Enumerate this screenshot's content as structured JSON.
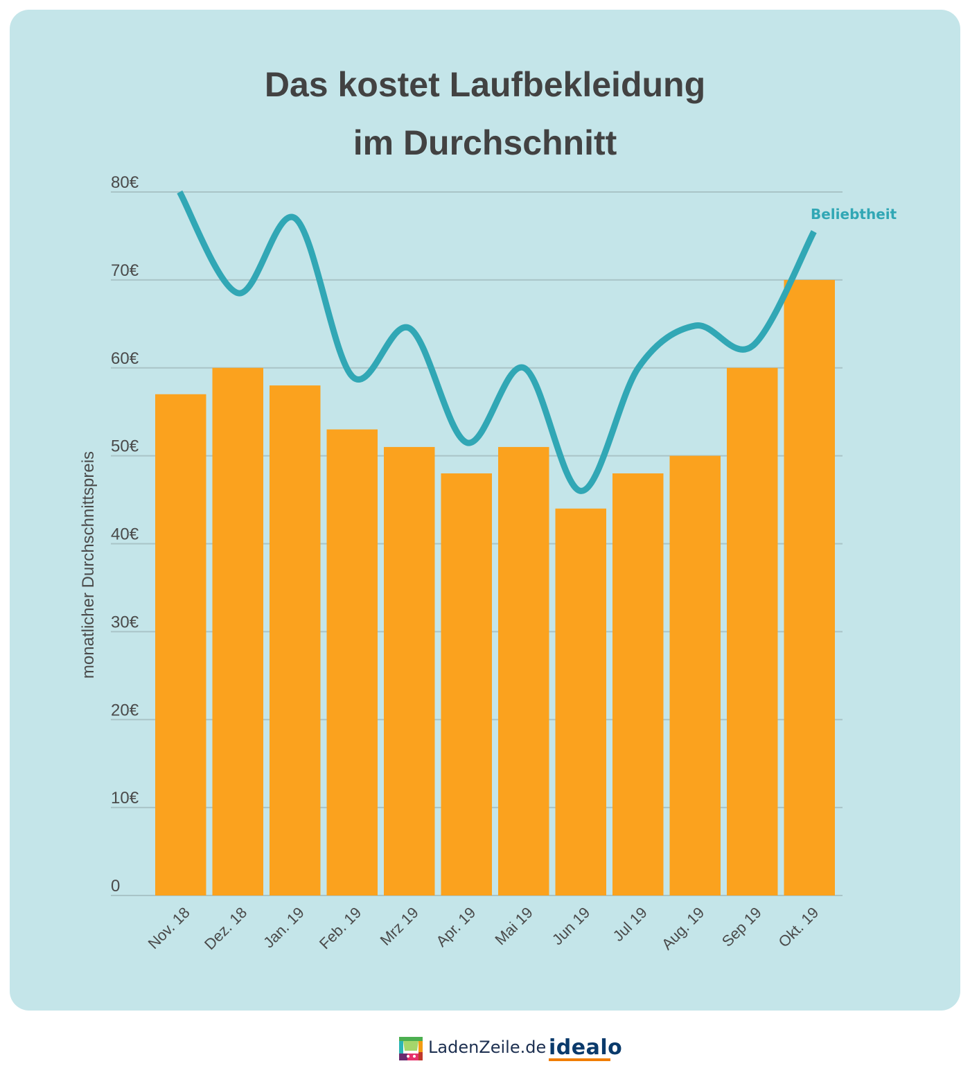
{
  "title_lines": [
    "Das kostet Laufbekleidung",
    "im Durchschnitt"
  ],
  "chart_data": {
    "type": "bar",
    "title": "Das kostet Laufbekleidung im Durchschnitt",
    "xlabel": "",
    "ylabel": "monatlicher Durchschnittspreis",
    "ylim": [
      0,
      80
    ],
    "yticks": [
      0,
      10,
      20,
      30,
      40,
      50,
      60,
      70,
      80
    ],
    "ytick_labels": [
      "0",
      "10€",
      "20€",
      "30€",
      "40€",
      "50€",
      "60€",
      "70€",
      "80€"
    ],
    "grid": true,
    "categories": [
      "Nov. 18",
      "Dez. 18",
      "Jan. 19",
      "Feb. 19",
      "Mrz 19",
      "Apr. 19",
      "Mai 19",
      "Jun 19",
      "Jul 19",
      "Aug. 19",
      "Sep 19",
      "Okt. 19"
    ],
    "series": [
      {
        "name": "monatlicher Durchschnittspreis",
        "type": "bar",
        "color": "#fba21e",
        "values": [
          57,
          60,
          58,
          53,
          51,
          48,
          51,
          44,
          48,
          50,
          60,
          70
        ]
      },
      {
        "name": "Beliebtheit",
        "type": "line",
        "color": "#31a7b5",
        "smooth": true,
        "values": [
          80,
          68.5,
          77,
          59,
          64.5,
          51.5,
          60,
          46,
          60,
          64.8,
          62.5,
          75.5
        ]
      }
    ],
    "annotations": [
      {
        "text": "Beliebtheit",
        "series": "Beliebtheit",
        "placement": "end"
      }
    ]
  },
  "footer": {
    "brand1": "LadenZeile.de",
    "brand2": "idealo"
  }
}
